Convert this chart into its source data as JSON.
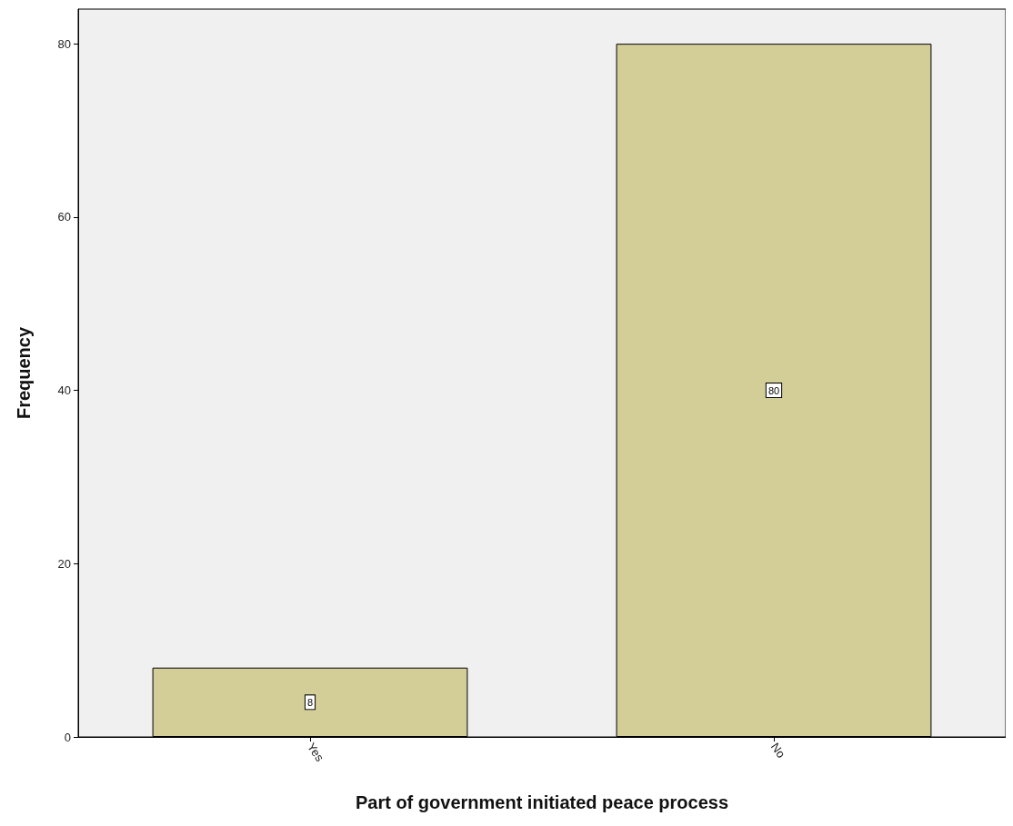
{
  "chart_data": {
    "type": "bar",
    "xlabel": "Part of government initiated peace process",
    "ylabel": "Frequency",
    "categories": [
      "Yes",
      "No"
    ],
    "values": [
      8,
      80
    ],
    "color": "#d3ce97",
    "ylim": [
      0,
      84
    ],
    "yticks": [
      0,
      20,
      40,
      60,
      80
    ],
    "grid": false,
    "data_labels": true
  }
}
